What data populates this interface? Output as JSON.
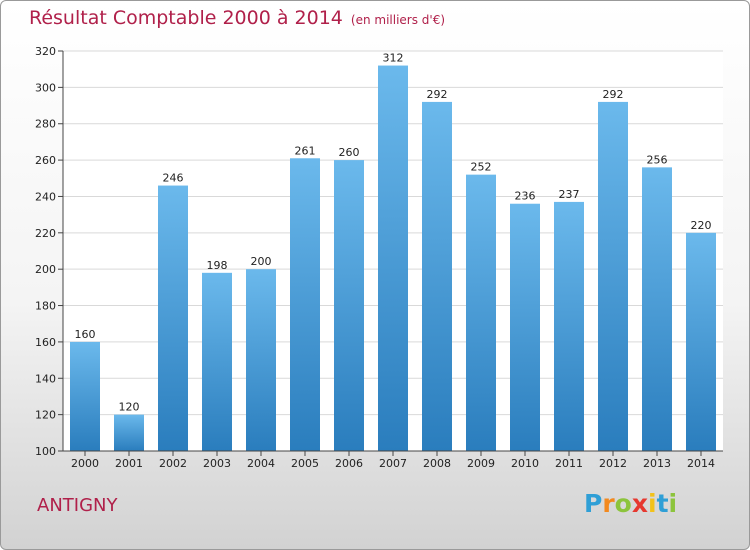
{
  "chart_data": {
    "type": "bar",
    "title": "Résultat Comptable 2000 à 2014",
    "unit_label": "(en milliers d'€)",
    "categories": [
      "2000",
      "2001",
      "2002",
      "2003",
      "2004",
      "2005",
      "2006",
      "2007",
      "2008",
      "2009",
      "2010",
      "2011",
      "2012",
      "2013",
      "2014"
    ],
    "values": [
      160,
      120,
      246,
      198,
      200,
      261,
      260,
      312,
      292,
      252,
      236,
      237,
      292,
      256,
      220
    ],
    "ylim": [
      100,
      320
    ],
    "yticks": [
      100,
      120,
      140,
      160,
      180,
      200,
      220,
      240,
      260,
      280,
      300,
      320
    ],
    "grid": true,
    "xlabel": "",
    "ylabel": ""
  },
  "location": "ANTIGNY",
  "brand": {
    "letters": [
      "P",
      "r",
      "o",
      "x",
      "i",
      "t",
      "i"
    ],
    "colors": [
      "#2f9fd6",
      "#f2891e",
      "#8cc43c",
      "#e6382f",
      "#f2c21a",
      "#2f9fd6",
      "#8cc43c"
    ]
  },
  "colors": {
    "title": "#b0204a",
    "bar_top": "#6bb9ec",
    "bar_bottom": "#2a7dbd"
  }
}
